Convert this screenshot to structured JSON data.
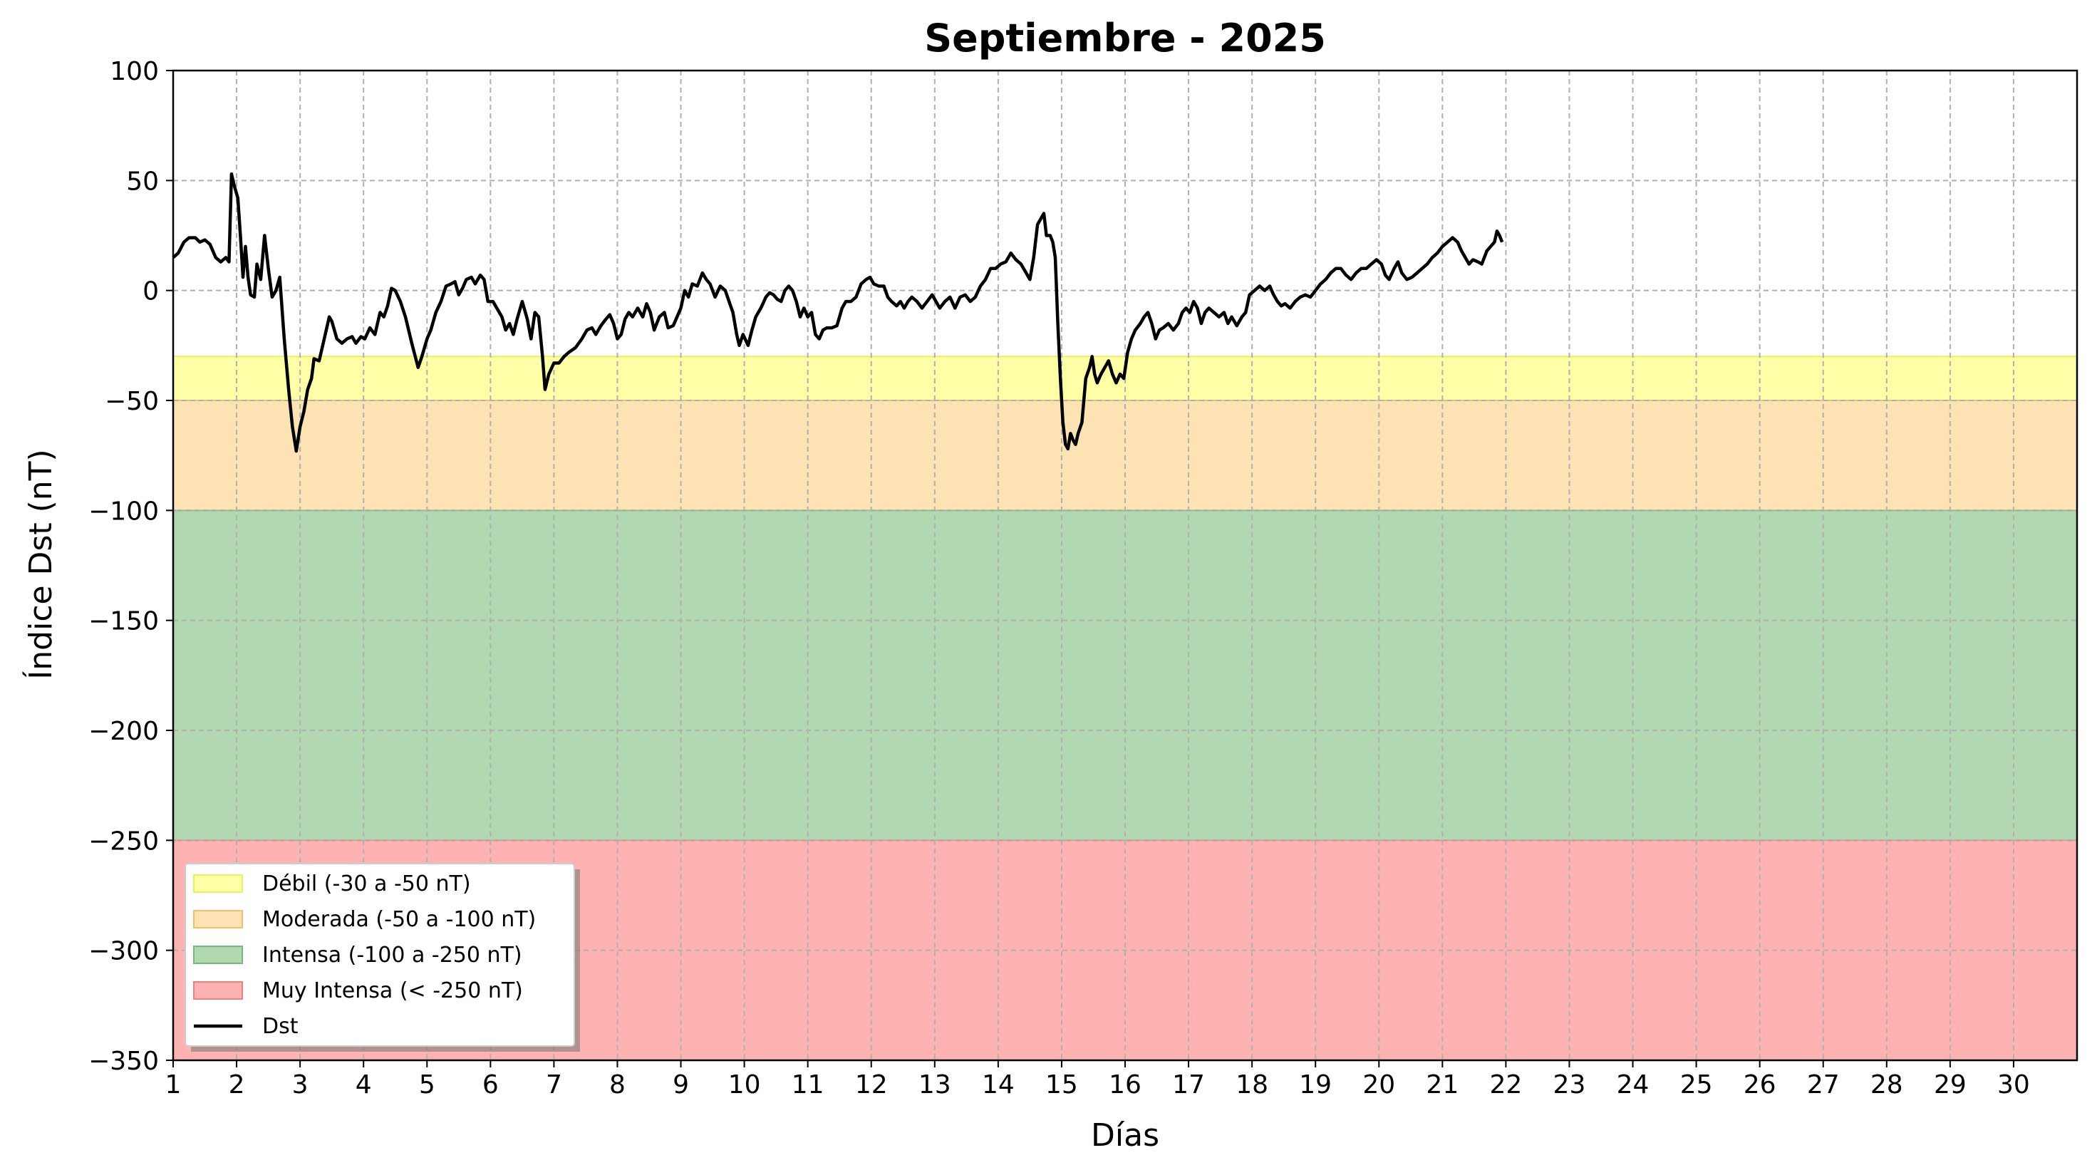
{
  "chart_data": {
    "type": "line",
    "title": "Septiembre - 2025",
    "xlabel": "Días",
    "ylabel": "Índice Dst (nT)",
    "xlim": [
      1,
      31
    ],
    "ylim": [
      -350,
      100
    ],
    "x_ticks": [
      1,
      2,
      3,
      4,
      5,
      6,
      7,
      8,
      9,
      10,
      11,
      12,
      13,
      14,
      15,
      16,
      17,
      18,
      19,
      20,
      21,
      22,
      23,
      24,
      25,
      26,
      27,
      28,
      29,
      30
    ],
    "y_ticks": [
      100,
      50,
      0,
      -50,
      -100,
      -150,
      -200,
      -250,
      -300,
      -350
    ],
    "y_tick_labels": [
      "100",
      "50",
      "0",
      "−50",
      "−100",
      "−150",
      "−200",
      "−250",
      "−300",
      "−350"
    ],
    "grid": true,
    "legend_position": "lower-left",
    "bands": [
      {
        "name": "Débil (-30 a -50 nT)",
        "from": -30,
        "to": -50,
        "color": "#ffffa8",
        "edge": "#eeee60"
      },
      {
        "name": "Moderada (-50 a -100 nT)",
        "from": -50,
        "to": -100,
        "color": "#fde2b4",
        "edge": "#f0c070"
      },
      {
        "name": "Intensa (-100 a -250 nT)",
        "from": -100,
        "to": -250,
        "color": "#b2d8b2",
        "edge": "#7ab77a"
      },
      {
        "name": "Muy Intensa (< -250 nT)",
        "from": -250,
        "to": -350,
        "color": "#ffb2b2",
        "edge": "#f08080"
      }
    ],
    "series": [
      {
        "name": "Dst",
        "color": "#000000",
        "points": [
          [
            1.0,
            15
          ],
          [
            1.08,
            17
          ],
          [
            1.17,
            22
          ],
          [
            1.25,
            24
          ],
          [
            1.35,
            24
          ],
          [
            1.42,
            22
          ],
          [
            1.5,
            23
          ],
          [
            1.58,
            21
          ],
          [
            1.67,
            15
          ],
          [
            1.75,
            13
          ],
          [
            1.83,
            15
          ],
          [
            1.88,
            13
          ],
          [
            1.92,
            53
          ],
          [
            1.96,
            48
          ],
          [
            2.02,
            42
          ],
          [
            2.06,
            25
          ],
          [
            2.1,
            6
          ],
          [
            2.14,
            20
          ],
          [
            2.18,
            6
          ],
          [
            2.22,
            -2
          ],
          [
            2.28,
            -3
          ],
          [
            2.32,
            12
          ],
          [
            2.38,
            5
          ],
          [
            2.44,
            25
          ],
          [
            2.5,
            10
          ],
          [
            2.56,
            -3
          ],
          [
            2.62,
            0
          ],
          [
            2.68,
            6
          ],
          [
            2.75,
            -22
          ],
          [
            2.82,
            -45
          ],
          [
            2.88,
            -62
          ],
          [
            2.94,
            -73
          ],
          [
            3.0,
            -62
          ],
          [
            3.06,
            -55
          ],
          [
            3.12,
            -45
          ],
          [
            3.18,
            -40
          ],
          [
            3.22,
            -31
          ],
          [
            3.3,
            -32
          ],
          [
            3.38,
            -22
          ],
          [
            3.46,
            -12
          ],
          [
            3.5,
            -14
          ],
          [
            3.58,
            -22
          ],
          [
            3.66,
            -24
          ],
          [
            3.74,
            -22
          ],
          [
            3.82,
            -21
          ],
          [
            3.88,
            -24
          ],
          [
            3.96,
            -21
          ],
          [
            4.02,
            -22
          ],
          [
            4.1,
            -17
          ],
          [
            4.18,
            -20
          ],
          [
            4.26,
            -10
          ],
          [
            4.32,
            -12
          ],
          [
            4.38,
            -7
          ],
          [
            4.44,
            1
          ],
          [
            4.5,
            0
          ],
          [
            4.58,
            -5
          ],
          [
            4.66,
            -12
          ],
          [
            4.76,
            -24
          ],
          [
            4.86,
            -35
          ],
          [
            4.92,
            -30
          ],
          [
            5.0,
            -22
          ],
          [
            5.06,
            -18
          ],
          [
            5.14,
            -10
          ],
          [
            5.22,
            -5
          ],
          [
            5.3,
            2
          ],
          [
            5.38,
            3
          ],
          [
            5.44,
            4
          ],
          [
            5.5,
            -2
          ],
          [
            5.56,
            1
          ],
          [
            5.62,
            5
          ],
          [
            5.7,
            6
          ],
          [
            5.76,
            3
          ],
          [
            5.84,
            7
          ],
          [
            5.9,
            5
          ],
          [
            5.96,
            -5
          ],
          [
            6.04,
            -5
          ],
          [
            6.1,
            -8
          ],
          [
            6.18,
            -12
          ],
          [
            6.24,
            -18
          ],
          [
            6.3,
            -15
          ],
          [
            6.36,
            -20
          ],
          [
            6.42,
            -13
          ],
          [
            6.5,
            -5
          ],
          [
            6.58,
            -13
          ],
          [
            6.64,
            -22
          ],
          [
            6.7,
            -10
          ],
          [
            6.76,
            -12
          ],
          [
            6.82,
            -30
          ],
          [
            6.86,
            -45
          ],
          [
            6.92,
            -38
          ],
          [
            7.0,
            -33
          ],
          [
            7.08,
            -33
          ],
          [
            7.16,
            -30
          ],
          [
            7.24,
            -28
          ],
          [
            7.34,
            -26
          ],
          [
            7.44,
            -22
          ],
          [
            7.52,
            -18
          ],
          [
            7.6,
            -17
          ],
          [
            7.66,
            -20
          ],
          [
            7.74,
            -16
          ],
          [
            7.82,
            -13
          ],
          [
            7.88,
            -11
          ],
          [
            7.94,
            -15
          ],
          [
            8.0,
            -22
          ],
          [
            8.06,
            -20
          ],
          [
            8.12,
            -13
          ],
          [
            8.18,
            -10
          ],
          [
            8.24,
            -12
          ],
          [
            8.32,
            -8
          ],
          [
            8.4,
            -12
          ],
          [
            8.46,
            -6
          ],
          [
            8.52,
            -10
          ],
          [
            8.58,
            -18
          ],
          [
            8.66,
            -12
          ],
          [
            8.74,
            -10
          ],
          [
            8.8,
            -17
          ],
          [
            8.88,
            -16
          ],
          [
            8.94,
            -12
          ],
          [
            9.0,
            -8
          ],
          [
            9.06,
            0
          ],
          [
            9.12,
            -3
          ],
          [
            9.18,
            3
          ],
          [
            9.26,
            2
          ],
          [
            9.34,
            8
          ],
          [
            9.4,
            5
          ],
          [
            9.46,
            3
          ],
          [
            9.54,
            -3
          ],
          [
            9.62,
            2
          ],
          [
            9.7,
            0
          ],
          [
            9.76,
            -5
          ],
          [
            9.82,
            -10
          ],
          [
            9.88,
            -20
          ],
          [
            9.92,
            -25
          ],
          [
            9.98,
            -20
          ],
          [
            10.06,
            -25
          ],
          [
            10.12,
            -18
          ],
          [
            10.18,
            -12
          ],
          [
            10.26,
            -8
          ],
          [
            10.34,
            -3
          ],
          [
            10.4,
            -1
          ],
          [
            10.46,
            -2
          ],
          [
            10.52,
            -4
          ],
          [
            10.58,
            -5
          ],
          [
            10.64,
            0
          ],
          [
            10.7,
            2
          ],
          [
            10.76,
            0
          ],
          [
            10.82,
            -5
          ],
          [
            10.88,
            -12
          ],
          [
            10.94,
            -8
          ],
          [
            11.0,
            -12
          ],
          [
            11.06,
            -10
          ],
          [
            11.12,
            -20
          ],
          [
            11.18,
            -22
          ],
          [
            11.24,
            -18
          ],
          [
            11.3,
            -17
          ],
          [
            11.38,
            -17
          ],
          [
            11.46,
            -16
          ],
          [
            11.54,
            -8
          ],
          [
            11.6,
            -5
          ],
          [
            11.68,
            -5
          ],
          [
            11.76,
            -3
          ],
          [
            11.84,
            3
          ],
          [
            11.92,
            5
          ],
          [
            11.98,
            6
          ],
          [
            12.04,
            3
          ],
          [
            12.12,
            2
          ],
          [
            12.2,
            2
          ],
          [
            12.26,
            -3
          ],
          [
            12.32,
            -5
          ],
          [
            12.4,
            -7
          ],
          [
            12.46,
            -5
          ],
          [
            12.52,
            -8
          ],
          [
            12.58,
            -5
          ],
          [
            12.64,
            -3
          ],
          [
            12.72,
            -5
          ],
          [
            12.8,
            -8
          ],
          [
            12.88,
            -5
          ],
          [
            12.96,
            -2
          ],
          [
            13.02,
            -5
          ],
          [
            13.08,
            -8
          ],
          [
            13.16,
            -5
          ],
          [
            13.24,
            -3
          ],
          [
            13.32,
            -8
          ],
          [
            13.4,
            -3
          ],
          [
            13.48,
            -2
          ],
          [
            13.56,
            -5
          ],
          [
            13.64,
            -3
          ],
          [
            13.72,
            2
          ],
          [
            13.8,
            5
          ],
          [
            13.88,
            10
          ],
          [
            13.96,
            10
          ],
          [
            14.04,
            12
          ],
          [
            14.12,
            13
          ],
          [
            14.2,
            17
          ],
          [
            14.28,
            14
          ],
          [
            14.36,
            12
          ],
          [
            14.44,
            8
          ],
          [
            14.5,
            5
          ],
          [
            14.56,
            15
          ],
          [
            14.62,
            30
          ],
          [
            14.68,
            33
          ],
          [
            14.72,
            35
          ],
          [
            14.76,
            25
          ],
          [
            14.82,
            25
          ],
          [
            14.86,
            22
          ],
          [
            14.9,
            15
          ],
          [
            14.94,
            -15
          ],
          [
            14.98,
            -40
          ],
          [
            15.02,
            -60
          ],
          [
            15.06,
            -70
          ],
          [
            15.1,
            -72
          ],
          [
            15.14,
            -65
          ],
          [
            15.18,
            -68
          ],
          [
            15.22,
            -70
          ],
          [
            15.26,
            -65
          ],
          [
            15.32,
            -60
          ],
          [
            15.38,
            -40
          ],
          [
            15.44,
            -35
          ],
          [
            15.48,
            -30
          ],
          [
            15.52,
            -38
          ],
          [
            15.56,
            -42
          ],
          [
            15.62,
            -38
          ],
          [
            15.68,
            -35
          ],
          [
            15.74,
            -32
          ],
          [
            15.8,
            -38
          ],
          [
            15.86,
            -42
          ],
          [
            15.92,
            -38
          ],
          [
            15.98,
            -40
          ],
          [
            16.04,
            -28
          ],
          [
            16.1,
            -22
          ],
          [
            16.16,
            -18
          ],
          [
            16.24,
            -15
          ],
          [
            16.3,
            -12
          ],
          [
            16.36,
            -10
          ],
          [
            16.42,
            -15
          ],
          [
            16.48,
            -22
          ],
          [
            16.54,
            -18
          ],
          [
            16.6,
            -17
          ],
          [
            16.68,
            -15
          ],
          [
            16.76,
            -18
          ],
          [
            16.84,
            -15
          ],
          [
            16.9,
            -10
          ],
          [
            16.96,
            -8
          ],
          [
            17.02,
            -10
          ],
          [
            17.08,
            -5
          ],
          [
            17.14,
            -8
          ],
          [
            17.2,
            -15
          ],
          [
            17.26,
            -10
          ],
          [
            17.32,
            -8
          ],
          [
            17.4,
            -10
          ],
          [
            17.48,
            -12
          ],
          [
            17.56,
            -10
          ],
          [
            17.62,
            -15
          ],
          [
            17.68,
            -12
          ],
          [
            17.76,
            -16
          ],
          [
            17.84,
            -12
          ],
          [
            17.9,
            -10
          ],
          [
            17.96,
            -2
          ],
          [
            18.04,
            0
          ],
          [
            18.12,
            2
          ],
          [
            18.2,
            0
          ],
          [
            18.28,
            2
          ],
          [
            18.34,
            -2
          ],
          [
            18.4,
            -5
          ],
          [
            18.46,
            -7
          ],
          [
            18.52,
            -6
          ],
          [
            18.6,
            -8
          ],
          [
            18.68,
            -5
          ],
          [
            18.76,
            -3
          ],
          [
            18.84,
            -2
          ],
          [
            18.92,
            -3
          ],
          [
            19.0,
            0
          ],
          [
            19.08,
            3
          ],
          [
            19.16,
            5
          ],
          [
            19.24,
            8
          ],
          [
            19.32,
            10
          ],
          [
            19.4,
            10
          ],
          [
            19.48,
            7
          ],
          [
            19.56,
            5
          ],
          [
            19.64,
            8
          ],
          [
            19.72,
            10
          ],
          [
            19.8,
            10
          ],
          [
            19.88,
            12
          ],
          [
            19.96,
            14
          ],
          [
            20.04,
            12
          ],
          [
            20.1,
            7
          ],
          [
            20.16,
            5
          ],
          [
            20.24,
            10
          ],
          [
            20.3,
            13
          ],
          [
            20.36,
            8
          ],
          [
            20.44,
            5
          ],
          [
            20.52,
            6
          ],
          [
            20.6,
            8
          ],
          [
            20.68,
            10
          ],
          [
            20.76,
            12
          ],
          [
            20.84,
            15
          ],
          [
            20.92,
            17
          ],
          [
            21.0,
            20
          ],
          [
            21.08,
            22
          ],
          [
            21.16,
            24
          ],
          [
            21.24,
            22
          ],
          [
            21.3,
            18
          ],
          [
            21.36,
            15
          ],
          [
            21.42,
            12
          ],
          [
            21.48,
            14
          ],
          [
            21.56,
            13
          ],
          [
            21.62,
            12
          ],
          [
            21.7,
            18
          ],
          [
            21.76,
            20
          ],
          [
            21.82,
            22
          ],
          [
            21.86,
            27
          ],
          [
            21.9,
            25
          ],
          [
            21.94,
            22
          ]
        ]
      }
    ]
  }
}
